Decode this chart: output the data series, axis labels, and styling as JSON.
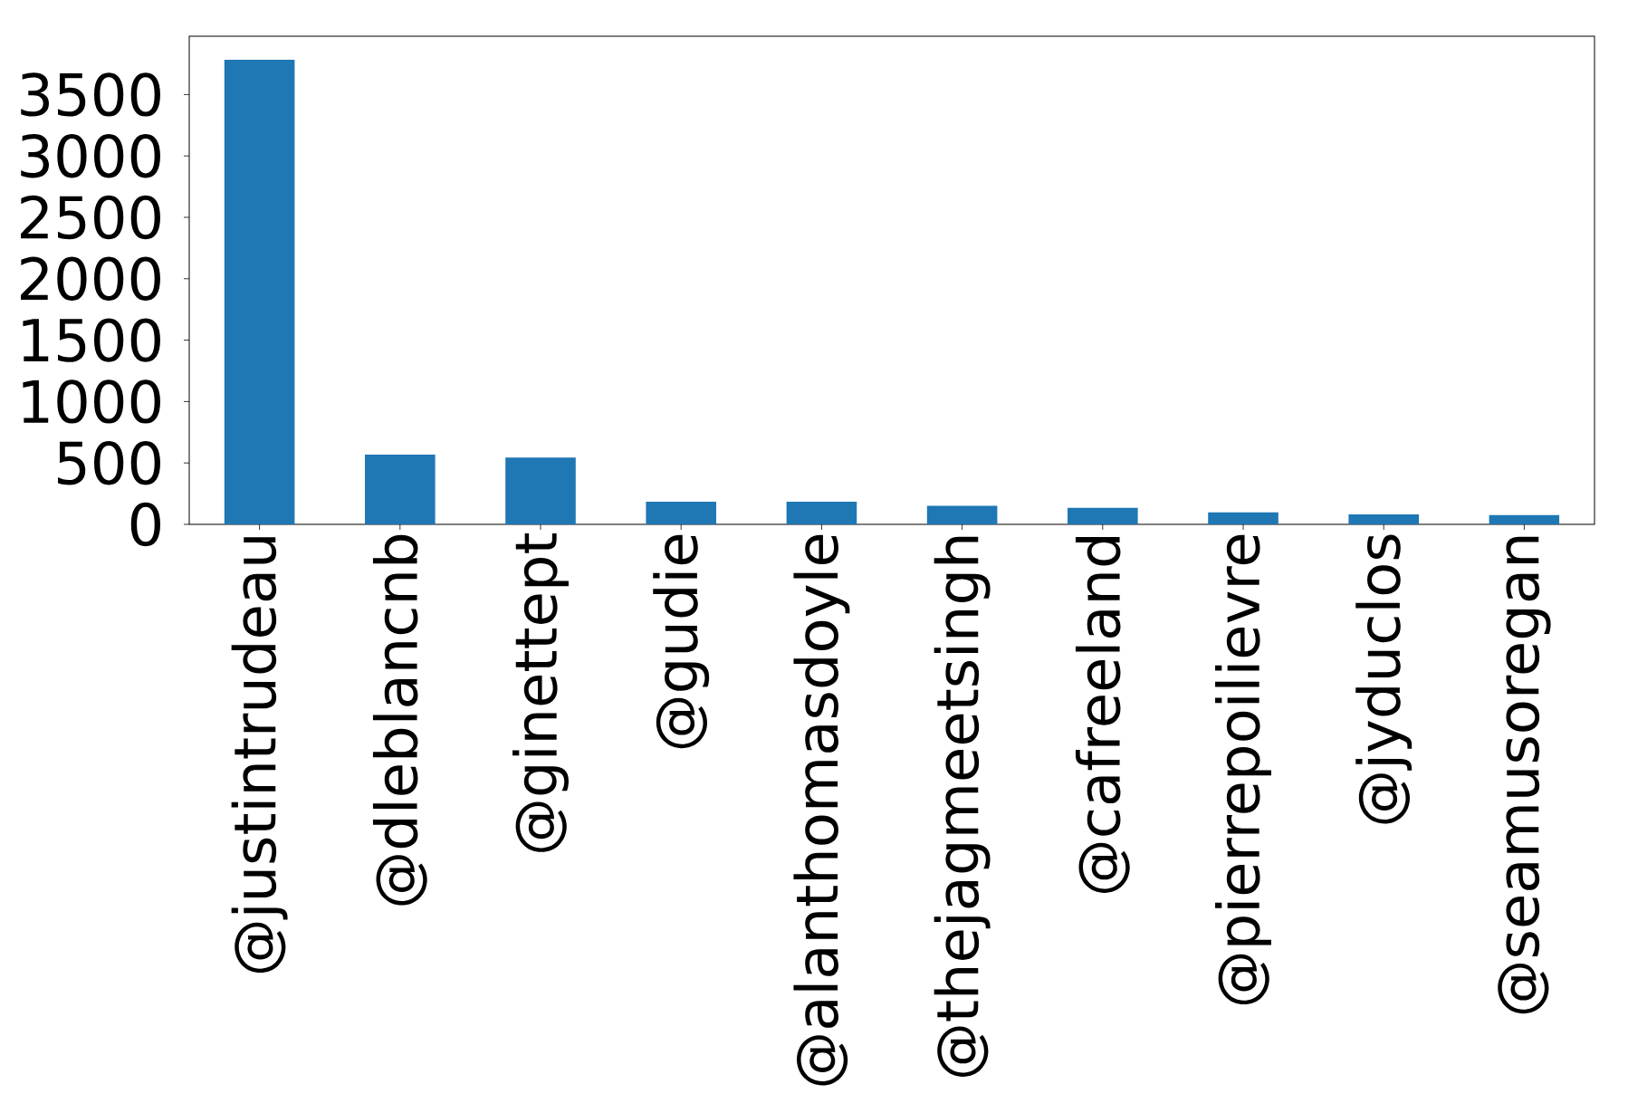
{
  "chart_data": {
    "type": "bar",
    "categories": [
      "@justintrudeau",
      "@dleblancnb",
      "@ginettept",
      "@gudie",
      "@alanthomasdoyle",
      "@thejagmeetsingh",
      "@cafreeland",
      "@pierrepoilievre",
      "@jyduclos",
      "@seamusoregan"
    ],
    "values": [
      3784,
      567,
      544,
      184,
      184,
      151,
      135,
      97,
      81,
      76
    ],
    "color": "#1f77b4",
    "ylim": [
      0,
      3975
    ],
    "yticks": [
      0,
      500,
      1000,
      1500,
      2000,
      2500,
      3000,
      3500
    ],
    "grid": false
  }
}
